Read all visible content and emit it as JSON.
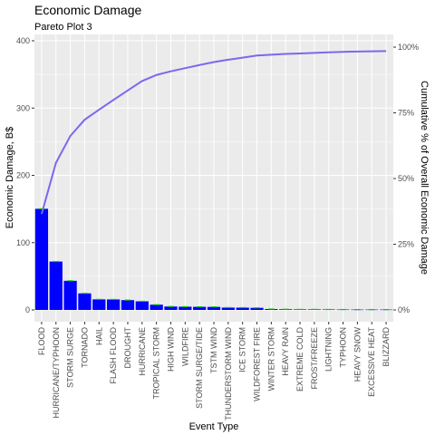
{
  "chart_data": {
    "type": "bar",
    "title": "Economic Damage",
    "subtitle": "Pareto Plot 3",
    "xlabel": "Event Type",
    "ylabel": "Economic Damage, B$",
    "y2label": "Cumulative % of Overall Economic Damage",
    "categories": [
      "FLOOD",
      "HURRICANE/TYPHOON",
      "STORM SURGE",
      "TORNADO",
      "HAIL",
      "FLASH FLOOD",
      "DROUGHT",
      "HURRICANE",
      "TROPICAL STORM",
      "HIGH WIND",
      "WILDFIRE",
      "STORM SURGE/TIDE",
      "TSTM WIND",
      "THUNDERSTORM WIND",
      "ICE STORM",
      "WILDFOREST FIRE",
      "WINTER STORM",
      "HEAVY RAIN",
      "EXTREME COLD",
      "FROST/FREEZE",
      "LIGHTNING",
      "TYPHOON",
      "HEAVY SNOW",
      "EXCESSIVE HEAT",
      "BLIZZARD"
    ],
    "series": [
      {
        "type": "bar",
        "values": [
          150.3,
          71.9,
          43.3,
          24.6,
          15.7,
          15.6,
          14.6,
          12.8,
          7.8,
          5.1,
          4.8,
          4.6,
          4.5,
          3.5,
          3.4,
          3.1,
          1.3,
          1.0,
          0.8,
          0.8,
          0.7,
          0.6,
          0.5,
          0.5,
          0.5
        ]
      },
      {
        "type": "line",
        "values": [
          36.5,
          56.0,
          66.2,
          72.4,
          76.2,
          79.9,
          83.5,
          87.1,
          89.4,
          90.8,
          92.0,
          93.2,
          94.3,
          95.2,
          96.0,
          96.8,
          97.1,
          97.4,
          97.6,
          97.8,
          98.0,
          98.2,
          98.3,
          98.4,
          98.5
        ]
      }
    ],
    "ylim": [
      0,
      400
    ],
    "yticks": [
      0,
      100,
      200,
      300,
      400
    ],
    "y2ticks": [
      "0%",
      "25%",
      "50%",
      "75%",
      "100%"
    ],
    "colors": {
      "bar": "#0000ff",
      "line": "#7b68ee",
      "error": "#00cc00",
      "panel": "#ebebeb",
      "grid": "#ffffff"
    },
    "grid": true,
    "legend": "none"
  }
}
